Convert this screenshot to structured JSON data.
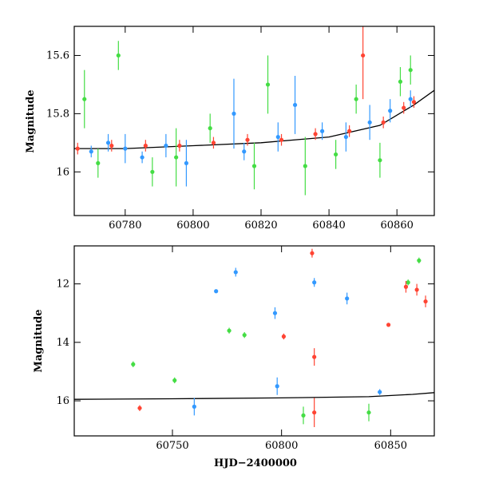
{
  "chart_data": [
    {
      "type": "scatter",
      "panel": "top",
      "title": "",
      "xlabel": "",
      "ylabel": "Magnitude",
      "xlim": [
        60765,
        60871
      ],
      "ylim": [
        16.15,
        15.5
      ],
      "y_inverted": true,
      "x_ticks": [
        60780,
        60800,
        60820,
        60840,
        60860
      ],
      "x_tick_labels": [
        "60780",
        "60800",
        "60820",
        "60840",
        "60860"
      ],
      "y_ticks": [
        15.6,
        15.8,
        16.0
      ],
      "y_tick_labels": [
        "15.6",
        "15.8",
        "16"
      ],
      "grid": false,
      "series": [
        {
          "color": "#3399ff",
          "points": [
            {
              "x": 60770,
              "y": 15.93,
              "err": 0.02
            },
            {
              "x": 60775,
              "y": 15.9,
              "err": 0.03
            },
            {
              "x": 60780,
              "y": 15.92,
              "err": 0.05
            },
            {
              "x": 60785,
              "y": 15.95,
              "err": 0.02
            },
            {
              "x": 60792,
              "y": 15.91,
              "err": 0.04
            },
            {
              "x": 60798,
              "y": 15.97,
              "err": 0.08
            },
            {
              "x": 60812,
              "y": 15.8,
              "err": 0.12
            },
            {
              "x": 60815,
              "y": 15.93,
              "err": 0.03
            },
            {
              "x": 60825,
              "y": 15.88,
              "err": 0.05
            },
            {
              "x": 60830,
              "y": 15.77,
              "err": 0.1
            },
            {
              "x": 60838,
              "y": 15.86,
              "err": 0.03
            },
            {
              "x": 60845,
              "y": 15.88,
              "err": 0.05
            },
            {
              "x": 60852,
              "y": 15.83,
              "err": 0.06
            },
            {
              "x": 60858,
              "y": 15.79,
              "err": 0.04
            },
            {
              "x": 60864,
              "y": 15.75,
              "err": 0.03
            }
          ]
        },
        {
          "color": "#44dd44",
          "points": [
            {
              "x": 60768,
              "y": 15.75,
              "err": 0.1
            },
            {
              "x": 60772,
              "y": 15.97,
              "err": 0.05
            },
            {
              "x": 60778,
              "y": 15.6,
              "err": 0.05
            },
            {
              "x": 60788,
              "y": 16.0,
              "err": 0.05
            },
            {
              "x": 60795,
              "y": 15.95,
              "err": 0.1
            },
            {
              "x": 60805,
              "y": 15.85,
              "err": 0.05
            },
            {
              "x": 60818,
              "y": 15.98,
              "err": 0.08
            },
            {
              "x": 60822,
              "y": 15.7,
              "err": 0.1
            },
            {
              "x": 60833,
              "y": 15.98,
              "err": 0.1
            },
            {
              "x": 60842,
              "y": 15.94,
              "err": 0.05
            },
            {
              "x": 60848,
              "y": 15.75,
              "err": 0.05
            },
            {
              "x": 60855,
              "y": 15.96,
              "err": 0.06
            },
            {
              "x": 60861,
              "y": 15.69,
              "err": 0.05
            },
            {
              "x": 60864,
              "y": 15.65,
              "err": 0.05
            }
          ]
        },
        {
          "color": "#ff4433",
          "points": [
            {
              "x": 60766,
              "y": 15.92,
              "err": 0.02
            },
            {
              "x": 60776,
              "y": 15.91,
              "err": 0.02
            },
            {
              "x": 60786,
              "y": 15.91,
              "err": 0.02
            },
            {
              "x": 60796,
              "y": 15.91,
              "err": 0.02
            },
            {
              "x": 60806,
              "y": 15.9,
              "err": 0.02
            },
            {
              "x": 60816,
              "y": 15.89,
              "err": 0.02
            },
            {
              "x": 60826,
              "y": 15.89,
              "err": 0.02
            },
            {
              "x": 60836,
              "y": 15.87,
              "err": 0.02
            },
            {
              "x": 60846,
              "y": 15.86,
              "err": 0.02
            },
            {
              "x": 60850,
              "y": 15.6,
              "err": 0.15
            },
            {
              "x": 60856,
              "y": 15.83,
              "err": 0.02
            },
            {
              "x": 60862,
              "y": 15.78,
              "err": 0.02
            },
            {
              "x": 60865,
              "y": 15.76,
              "err": 0.02
            }
          ]
        }
      ],
      "model_curve": {
        "color": "#000000",
        "x": [
          60765,
          60780,
          60800,
          60820,
          60840,
          60855,
          60865,
          60871
        ],
        "y": [
          15.92,
          15.92,
          15.91,
          15.9,
          15.88,
          15.84,
          15.77,
          15.72
        ]
      }
    },
    {
      "type": "scatter",
      "panel": "bottom",
      "title": "",
      "xlabel": "HJD−2400000",
      "ylabel": "Magnitude",
      "xlim": [
        60705,
        60870
      ],
      "ylim": [
        17.2,
        10.7
      ],
      "y_inverted": true,
      "x_ticks": [
        60750,
        60800,
        60850
      ],
      "x_tick_labels": [
        "60750",
        "60800",
        "60850"
      ],
      "y_ticks": [
        12,
        14,
        16
      ],
      "y_tick_labels": [
        "12",
        "14",
        "16"
      ],
      "grid": false,
      "series": [
        {
          "color": "#3399ff",
          "points": [
            {
              "x": 60770,
              "y": 12.25,
              "err": 0.05
            },
            {
              "x": 60779,
              "y": 11.6,
              "err": 0.15
            },
            {
              "x": 60797,
              "y": 13.0,
              "err": 0.2
            },
            {
              "x": 60815,
              "y": 11.95,
              "err": 0.15
            },
            {
              "x": 60830,
              "y": 12.5,
              "err": 0.2
            },
            {
              "x": 60798,
              "y": 15.5,
              "err": 0.3
            },
            {
              "x": 60760,
              "y": 16.2,
              "err": 0.3
            },
            {
              "x": 60845,
              "y": 15.7,
              "err": 0.1
            }
          ]
        },
        {
          "color": "#44dd44",
          "points": [
            {
              "x": 60776,
              "y": 13.6,
              "err": 0.1
            },
            {
              "x": 60783,
              "y": 13.75,
              "err": 0.1
            },
            {
              "x": 60732,
              "y": 14.75,
              "err": 0.1
            },
            {
              "x": 60858,
              "y": 11.95,
              "err": 0.1
            },
            {
              "x": 60863,
              "y": 11.2,
              "err": 0.1
            },
            {
              "x": 60751,
              "y": 15.3,
              "err": 0.1
            },
            {
              "x": 60810,
              "y": 16.5,
              "err": 0.3
            },
            {
              "x": 60840,
              "y": 16.4,
              "err": 0.3
            }
          ]
        },
        {
          "color": "#ff4433",
          "points": [
            {
              "x": 60814,
              "y": 10.95,
              "err": 0.15
            },
            {
              "x": 60801,
              "y": 13.8,
              "err": 0.1
            },
            {
              "x": 60849,
              "y": 13.4,
              "err": 0.05
            },
            {
              "x": 60857,
              "y": 12.1,
              "err": 0.2
            },
            {
              "x": 60862,
              "y": 12.2,
              "err": 0.2
            },
            {
              "x": 60866,
              "y": 12.6,
              "err": 0.2
            },
            {
              "x": 60815,
              "y": 14.5,
              "err": 0.3
            },
            {
              "x": 60815,
              "y": 16.4,
              "err": 0.5
            },
            {
              "x": 60735,
              "y": 16.25,
              "err": 0.1
            }
          ]
        }
      ],
      "model_curve": {
        "color": "#000000",
        "x": [
          60705,
          60750,
          60800,
          60840,
          60860,
          60870
        ],
        "y": [
          15.95,
          15.93,
          15.9,
          15.86,
          15.78,
          15.72
        ]
      }
    }
  ]
}
